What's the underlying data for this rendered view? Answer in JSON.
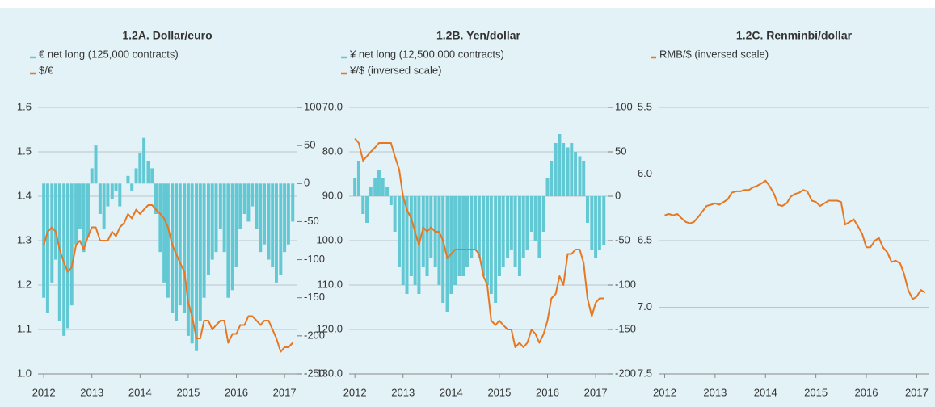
{
  "chart_data": [
    {
      "type": "combo",
      "title": "1.2A. Dollar/euro",
      "x": [
        2012,
        2012.08,
        2012.17,
        2012.25,
        2012.33,
        2012.42,
        2012.5,
        2012.58,
        2012.67,
        2012.75,
        2012.83,
        2012.92,
        2013,
        2013.08,
        2013.17,
        2013.25,
        2013.33,
        2013.42,
        2013.5,
        2013.58,
        2013.67,
        2013.75,
        2013.83,
        2013.92,
        2014,
        2014.08,
        2014.17,
        2014.25,
        2014.33,
        2014.42,
        2014.5,
        2014.58,
        2014.67,
        2014.75,
        2014.83,
        2014.92,
        2015,
        2015.08,
        2015.17,
        2015.25,
        2015.33,
        2015.42,
        2015.5,
        2015.58,
        2015.67,
        2015.75,
        2015.83,
        2015.92,
        2016,
        2016.08,
        2016.17,
        2016.25,
        2016.33,
        2016.42,
        2016.5,
        2016.58,
        2016.67,
        2016.75,
        2016.83,
        2016.92,
        2017,
        2017.08,
        2017.17
      ],
      "xlim": [
        2011.88,
        2017.25
      ],
      "xticks": [
        2012,
        2013,
        2014,
        2015,
        2016,
        2017
      ],
      "ylim": [
        1.0,
        1.6
      ],
      "yticks": [
        {
          "value": 1,
          "label": "1.0"
        },
        1.1,
        1.2,
        1.3,
        1.4,
        1.5,
        1.6
      ],
      "y2lim": [
        -250,
        100
      ],
      "y2ticks": [
        -250,
        -200,
        -150,
        -100,
        -50,
        0,
        50,
        100
      ],
      "grid": true,
      "series": [
        {
          "name": "€ net long (125,000 contracts)",
          "color": "#62c8d3",
          "type": "bar",
          "axis": "y2",
          "values": [
            -150,
            -170,
            -130,
            -100,
            -180,
            -200,
            -190,
            -160,
            -80,
            -60,
            -90,
            -70,
            20,
            50,
            -40,
            -60,
            -30,
            -20,
            -10,
            -30,
            0,
            10,
            -10,
            20,
            40,
            60,
            30,
            20,
            -40,
            -90,
            -130,
            -150,
            -170,
            -180,
            -160,
            -170,
            -200,
            -210,
            -220,
            -180,
            -150,
            -120,
            -100,
            -90,
            -60,
            -90,
            -150,
            -140,
            -110,
            -60,
            -40,
            -50,
            -30,
            -60,
            -90,
            -80,
            -100,
            -110,
            -130,
            -120,
            -90,
            -80,
            -50
          ]
        },
        {
          "name": "$/€",
          "color": "#e87722",
          "type": "line",
          "values": [
            1.29,
            1.32,
            1.33,
            1.32,
            1.28,
            1.25,
            1.23,
            1.24,
            1.29,
            1.3,
            1.28,
            1.31,
            1.33,
            1.33,
            1.3,
            1.3,
            1.3,
            1.32,
            1.31,
            1.33,
            1.34,
            1.36,
            1.35,
            1.37,
            1.36,
            1.37,
            1.38,
            1.38,
            1.37,
            1.36,
            1.35,
            1.33,
            1.29,
            1.27,
            1.25,
            1.23,
            1.16,
            1.13,
            1.08,
            1.08,
            1.12,
            1.12,
            1.1,
            1.11,
            1.12,
            1.12,
            1.07,
            1.09,
            1.09,
            1.11,
            1.11,
            1.13,
            1.13,
            1.12,
            1.11,
            1.12,
            1.12,
            1.1,
            1.08,
            1.05,
            1.06,
            1.06,
            1.07
          ]
        }
      ]
    },
    {
      "type": "combo",
      "title": "1.2B. Yen/dollar",
      "x": [
        2012,
        2012.08,
        2012.17,
        2012.25,
        2012.33,
        2012.42,
        2012.5,
        2012.58,
        2012.67,
        2012.75,
        2012.83,
        2012.92,
        2013,
        2013.08,
        2013.17,
        2013.25,
        2013.33,
        2013.42,
        2013.5,
        2013.58,
        2013.67,
        2013.75,
        2013.83,
        2013.92,
        2014,
        2014.08,
        2014.17,
        2014.25,
        2014.33,
        2014.42,
        2014.5,
        2014.58,
        2014.67,
        2014.75,
        2014.83,
        2014.92,
        2015,
        2015.08,
        2015.17,
        2015.25,
        2015.33,
        2015.42,
        2015.5,
        2015.58,
        2015.67,
        2015.75,
        2015.83,
        2015.92,
        2016,
        2016.08,
        2016.17,
        2016.25,
        2016.33,
        2016.42,
        2016.5,
        2016.58,
        2016.67,
        2016.75,
        2016.83,
        2016.92,
        2017,
        2017.08,
        2017.17
      ],
      "xlim": [
        2011.88,
        2017.25
      ],
      "xticks": [
        2012,
        2013,
        2014,
        2015,
        2016,
        2017
      ],
      "ylim": [
        70,
        130
      ],
      "y_inverted": true,
      "yticks": [
        {
          "value": 70,
          "label": "70.0"
        },
        {
          "value": 80,
          "label": "80.0"
        },
        {
          "value": 90,
          "label": "90.0"
        },
        {
          "value": 100,
          "label": "100.0"
        },
        {
          "value": 110,
          "label": "110.0"
        },
        {
          "value": 120,
          "label": "120.0"
        },
        {
          "value": 130,
          "label": "130.0"
        }
      ],
      "y2lim": [
        -200,
        100
      ],
      "y2ticks": [
        -200,
        -150,
        -100,
        -50,
        0,
        50,
        100
      ],
      "grid": true,
      "series": [
        {
          "name": "¥ net long (12,500,000 contracts)",
          "color": "#62c8d3",
          "type": "bar",
          "axis": "y2",
          "values": [
            20,
            40,
            -20,
            -30,
            10,
            20,
            30,
            20,
            10,
            -10,
            -40,
            -80,
            -100,
            -110,
            -90,
            -100,
            -110,
            -80,
            -90,
            -70,
            -80,
            -100,
            -120,
            -130,
            -110,
            -100,
            -90,
            -90,
            -80,
            -70,
            -60,
            -70,
            -90,
            -100,
            -110,
            -120,
            -90,
            -80,
            -70,
            -60,
            -80,
            -90,
            -70,
            -60,
            -40,
            -50,
            -70,
            -40,
            20,
            40,
            60,
            70,
            60,
            55,
            60,
            50,
            45,
            40,
            -30,
            -60,
            -70,
            -60,
            -55
          ]
        },
        {
          "name": "¥/$ (inversed scale)",
          "color": "#e87722",
          "type": "line",
          "values": [
            77,
            78,
            82,
            81,
            80,
            79,
            78,
            78,
            78,
            78,
            81,
            84,
            90,
            93,
            95,
            98,
            101,
            97,
            98,
            97,
            98,
            98,
            100,
            104,
            103,
            102,
            102,
            102,
            102,
            102,
            102,
            103,
            108,
            110,
            118,
            119,
            118,
            119,
            120,
            120,
            124,
            123,
            124,
            123,
            120,
            121,
            123,
            121,
            118,
            113,
            112,
            108,
            110,
            103,
            103,
            102,
            102,
            105,
            113,
            117,
            114,
            113,
            113
          ]
        }
      ]
    },
    {
      "type": "line",
      "title": "1.2C. Renminbi/dollar",
      "x": [
        2012,
        2012.08,
        2012.17,
        2012.25,
        2012.33,
        2012.42,
        2012.5,
        2012.58,
        2012.67,
        2012.75,
        2012.83,
        2012.92,
        2013,
        2013.08,
        2013.17,
        2013.25,
        2013.33,
        2013.42,
        2013.5,
        2013.58,
        2013.67,
        2013.75,
        2013.83,
        2013.92,
        2014,
        2014.08,
        2014.17,
        2014.25,
        2014.33,
        2014.42,
        2014.5,
        2014.58,
        2014.67,
        2014.75,
        2014.83,
        2014.92,
        2015,
        2015.08,
        2015.17,
        2015.25,
        2015.33,
        2015.42,
        2015.5,
        2015.58,
        2015.67,
        2015.75,
        2015.83,
        2015.92,
        2016,
        2016.08,
        2016.17,
        2016.25,
        2016.33,
        2016.42,
        2016.5,
        2016.58,
        2016.67,
        2016.75,
        2016.83,
        2016.92,
        2017,
        2017.08,
        2017.17
      ],
      "xlim": [
        2011.88,
        2017.25
      ],
      "xticks": [
        2012,
        2013,
        2014,
        2015,
        2016,
        2017
      ],
      "ylim": [
        5.5,
        7.5
      ],
      "y_inverted": true,
      "yticks": [
        5.5,
        {
          "value": 6,
          "label": "6.0"
        },
        6.5,
        {
          "value": 7,
          "label": "7.0"
        },
        7.5
      ],
      "grid": true,
      "series": [
        {
          "name": "RMB/$ (inversed scale)",
          "color": "#e87722",
          "type": "line",
          "values": [
            6.31,
            6.3,
            6.31,
            6.3,
            6.33,
            6.36,
            6.37,
            6.36,
            6.32,
            6.28,
            6.24,
            6.23,
            6.22,
            6.23,
            6.21,
            6.19,
            6.14,
            6.13,
            6.13,
            6.12,
            6.12,
            6.1,
            6.09,
            6.07,
            6.05,
            6.09,
            6.15,
            6.23,
            6.24,
            6.22,
            6.17,
            6.15,
            6.14,
            6.12,
            6.13,
            6.2,
            6.21,
            6.24,
            6.22,
            6.2,
            6.2,
            6.2,
            6.21,
            6.38,
            6.36,
            6.34,
            6.39,
            6.45,
            6.55,
            6.55,
            6.5,
            6.48,
            6.55,
            6.59,
            6.66,
            6.65,
            6.67,
            6.75,
            6.87,
            6.94,
            6.92,
            6.87,
            6.89
          ]
        }
      ]
    }
  ]
}
